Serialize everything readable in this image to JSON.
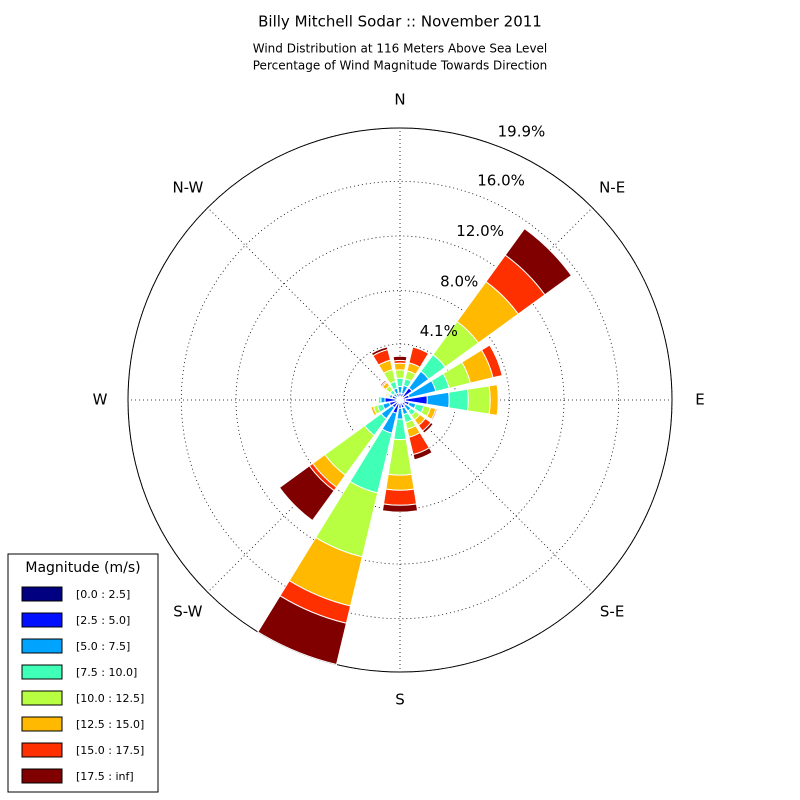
{
  "chart_data": {
    "type": "windrose",
    "title": "Billy Mitchell Sodar :: November 2011",
    "subtitle": [
      "Wind Distribution at 116 Meters Above Sea Level",
      "Percentage of Wind Magnitude Towards Direction"
    ],
    "directions": [
      "N",
      null,
      "N-E",
      null,
      "E",
      null,
      "S-E",
      null,
      "S",
      null,
      "S-W",
      null,
      "W",
      null,
      "N-W",
      null
    ],
    "rlim": [
      0,
      19.9
    ],
    "rticks": [
      {
        "value": 4.1,
        "label": "4.1%"
      },
      {
        "value": 8.0,
        "label": "8.0%"
      },
      {
        "value": 12.0,
        "label": "12.0%"
      },
      {
        "value": 16.0,
        "label": "16.0%"
      },
      {
        "value": 19.9,
        "label": "19.9%"
      }
    ],
    "grid": true,
    "legend_title": "Magnitude (m/s)",
    "legend_position": "lower left",
    "series": [
      {
        "name": "[0.0 : 2.5]",
        "color": "#000080",
        "values": [
          0.2,
          0.2,
          0.3,
          0.2,
          0.4,
          0.3,
          0.2,
          0.2,
          0.2,
          0.2,
          0.2,
          0.2,
          0.3,
          0.2,
          0.1,
          0.2
        ]
      },
      {
        "name": "[2.5 : 5.0]",
        "color": "#0010ff",
        "values": [
          0.3,
          0.3,
          0.8,
          0.5,
          1.6,
          0.4,
          0.3,
          0.4,
          0.4,
          0.8,
          0.5,
          0.6,
          0.8,
          0.4,
          0.2,
          0.3
        ]
      },
      {
        "name": "[5.0 : 7.5]",
        "color": "#00a4ff",
        "values": [
          0.5,
          0.6,
          1.5,
          2.0,
          1.6,
          0.5,
          0.5,
          0.5,
          0.8,
          1.5,
          1.0,
          0.5,
          0.3,
          0.2,
          0.3,
          0.4
        ]
      },
      {
        "name": "[7.5 : 10.0]",
        "color": "#40ffb7",
        "values": [
          0.6,
          0.5,
          1.5,
          1.0,
          1.4,
          0.6,
          0.4,
          0.6,
          1.5,
          4.5,
          1.5,
          0.4,
          0.2,
          0.1,
          0.3,
          0.5
        ]
      },
      {
        "name": "[10.0 : 12.5]",
        "color": "#b7ff40",
        "values": [
          0.6,
          0.6,
          3.0,
          1.6,
          1.6,
          0.5,
          0.4,
          0.5,
          2.6,
          4.8,
          3.6,
          0.3,
          0,
          0.1,
          0.4,
          0.9
        ]
      },
      {
        "name": "[12.5 : 15.0]",
        "color": "#ffb900",
        "values": [
          0.5,
          0.6,
          3.6,
          1.7,
          0.6,
          0.4,
          0.5,
          0.6,
          1.1,
          3.7,
          1.1,
          0.2,
          0,
          0.1,
          0.3,
          0.7
        ]
      },
      {
        "name": "[15.0 : 17.5]",
        "color": "#ff3000",
        "values": [
          0.2,
          1.2,
          2.4,
          0.7,
          0,
          0.1,
          0.5,
          1.3,
          1.1,
          1.3,
          0.3,
          0,
          0,
          0,
          0.1,
          0.8
        ]
      },
      {
        "name": "[17.5 : inf]",
        "color": "#800000",
        "values": [
          0.3,
          0,
          2.4,
          0,
          0,
          0,
          0.2,
          0.4,
          0.5,
          3.1,
          2.7,
          0,
          0,
          0,
          0.1,
          0.2
        ]
      }
    ]
  }
}
